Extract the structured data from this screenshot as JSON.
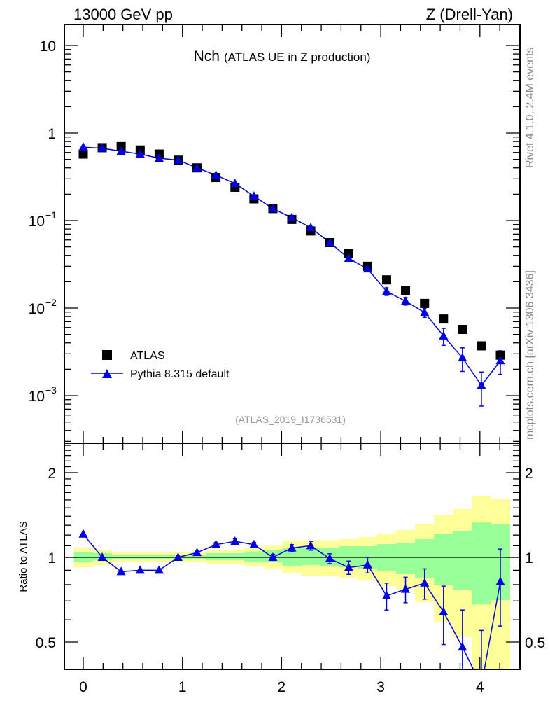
{
  "header": {
    "left": "13000 GeV pp",
    "right": "Z (Drell-Yan)",
    "title_main": "Nch",
    "title_sub": "(ATLAS UE in Z production)",
    "side_top": "Rivet 4.1.0,  2.4M events",
    "side_bottom": "mcplots.cern.ch [arXiv:1306.3436]",
    "analysis": "(ATLAS_2019_I1736531)"
  },
  "chart_data": [
    {
      "type": "scatter",
      "panel": "main",
      "title": "Nch (ATLAS UE in Z production)",
      "xlabel": "",
      "ylabel": "",
      "yscale": "log",
      "xlim": [
        -0.19,
        4.4
      ],
      "ylim": [
        0.000286,
        17.4
      ],
      "x_ticks": [
        "0",
        "1",
        "2",
        "3",
        "4"
      ],
      "y_ticks": [
        {
          "v": 10,
          "base": "10",
          "exp": ""
        },
        {
          "v": 1,
          "base": "1",
          "exp": ""
        },
        {
          "v": 0.1,
          "base": "10",
          "exp": "−1"
        },
        {
          "v": 0.01,
          "base": "10",
          "exp": "−2"
        },
        {
          "v": 0.001,
          "base": "10",
          "exp": "−3"
        }
      ],
      "legend": {
        "position": "bottom-left",
        "entries": [
          "ATLAS",
          "Pythia 8.315 default"
        ]
      },
      "x": [
        0,
        0.191,
        0.382,
        0.574,
        0.765,
        0.956,
        1.147,
        1.338,
        1.53,
        1.721,
        1.912,
        2.103,
        2.294,
        2.486,
        2.677,
        2.868,
        3.059,
        3.25,
        3.442,
        3.633,
        3.824,
        4.015,
        4.206
      ],
      "bin_halfwidth": 0.0956,
      "series": [
        {
          "name": "ATLAS",
          "color": "#000000",
          "marker": "square",
          "values": [
            0.575,
            0.68,
            0.7,
            0.64,
            0.575,
            0.49,
            0.4,
            0.31,
            0.24,
            0.177,
            0.137,
            0.103,
            0.076,
            0.056,
            0.042,
            0.03,
            0.021,
            0.0159,
            0.0113,
            0.0075,
            0.0057,
            0.0037,
            0.0029
          ]
        },
        {
          "name": "Pythia 8.315 default",
          "color": "#0000e0",
          "marker": "triangle",
          "values": [
            0.69,
            0.67,
            0.62,
            0.575,
            0.515,
            0.49,
            0.4,
            0.33,
            0.265,
            0.19,
            0.137,
            0.108,
            0.083,
            0.056,
            0.037,
            0.028,
            0.0155,
            0.012,
            0.0089,
            0.0048,
            0.0027,
            0.00131,
            0.0025
          ],
          "rel_err": [
            0.005,
            0.005,
            0.005,
            0.005,
            0.005,
            0.005,
            0.01,
            0.02,
            0.02,
            0.02,
            0.025,
            0.03,
            0.035,
            0.04,
            0.05,
            0.06,
            0.1,
            0.1,
            0.12,
            0.22,
            0.3,
            0.42,
            0.3
          ]
        }
      ]
    },
    {
      "type": "line",
      "panel": "ratio",
      "ylabel": "Ratio to ATLAS",
      "yscale": "log",
      "ylim": [
        0.4,
        2.54
      ],
      "y_ticks": [
        "2",
        "1",
        "0.5"
      ],
      "x": [
        0,
        0.191,
        0.382,
        0.574,
        0.765,
        0.956,
        1.147,
        1.338,
        1.53,
        1.721,
        1.912,
        2.103,
        2.294,
        2.486,
        2.677,
        2.868,
        3.059,
        3.25,
        3.442,
        3.633,
        3.824,
        4.015,
        4.206
      ],
      "band_total": {
        "color": "#ffff99",
        "lo": [
          0.923,
          0.939,
          0.961,
          0.961,
          0.961,
          0.961,
          0.961,
          0.95,
          0.95,
          0.93,
          0.91,
          0.882,
          0.857,
          0.857,
          0.842,
          0.828,
          0.79,
          0.77,
          0.693,
          0.59,
          0.52,
          0.3,
          0.3
        ],
        "hi": [
          1.083,
          1.065,
          1.047,
          1.047,
          1.047,
          1.047,
          1.047,
          1.06,
          1.06,
          1.08,
          1.1,
          1.141,
          1.147,
          1.15,
          1.16,
          1.18,
          1.215,
          1.25,
          1.316,
          1.418,
          1.485,
          1.656,
          1.61
        ]
      },
      "band_stat": {
        "color": "#99ff99",
        "lo": [
          0.966,
          0.977,
          0.989,
          0.989,
          0.989,
          0.989,
          0.989,
          0.977,
          0.977,
          0.96,
          0.96,
          0.934,
          0.939,
          0.933,
          0.923,
          0.912,
          0.897,
          0.872,
          0.847,
          0.795,
          0.764,
          0.68,
          0.705
        ],
        "hi": [
          1.047,
          1.035,
          1.023,
          1.023,
          1.023,
          1.023,
          1.023,
          1.035,
          1.035,
          1.05,
          1.06,
          1.077,
          1.083,
          1.083,
          1.096,
          1.096,
          1.115,
          1.128,
          1.16,
          1.215,
          1.243,
          1.33,
          1.31
        ]
      },
      "series": [
        {
          "name": "Pythia 8.315 default",
          "color": "#0000e0",
          "values": [
            1.21,
            1.0,
            0.89,
            0.9,
            0.9,
            1.0,
            1.04,
            1.11,
            1.14,
            1.11,
            1.0,
            1.08,
            1.1,
            0.99,
            0.92,
            0.94,
            0.73,
            0.77,
            0.81,
            0.64,
            0.48,
            0.35,
            0.82
          ],
          "err": [
            0.005,
            0.005,
            0.005,
            0.005,
            0.005,
            0.005,
            0.01,
            0.02,
            0.025,
            0.02,
            0.025,
            0.03,
            0.04,
            0.04,
            0.05,
            0.06,
            0.08,
            0.08,
            0.1,
            0.15,
            0.17,
            0.2,
            0.25
          ]
        }
      ]
    }
  ]
}
